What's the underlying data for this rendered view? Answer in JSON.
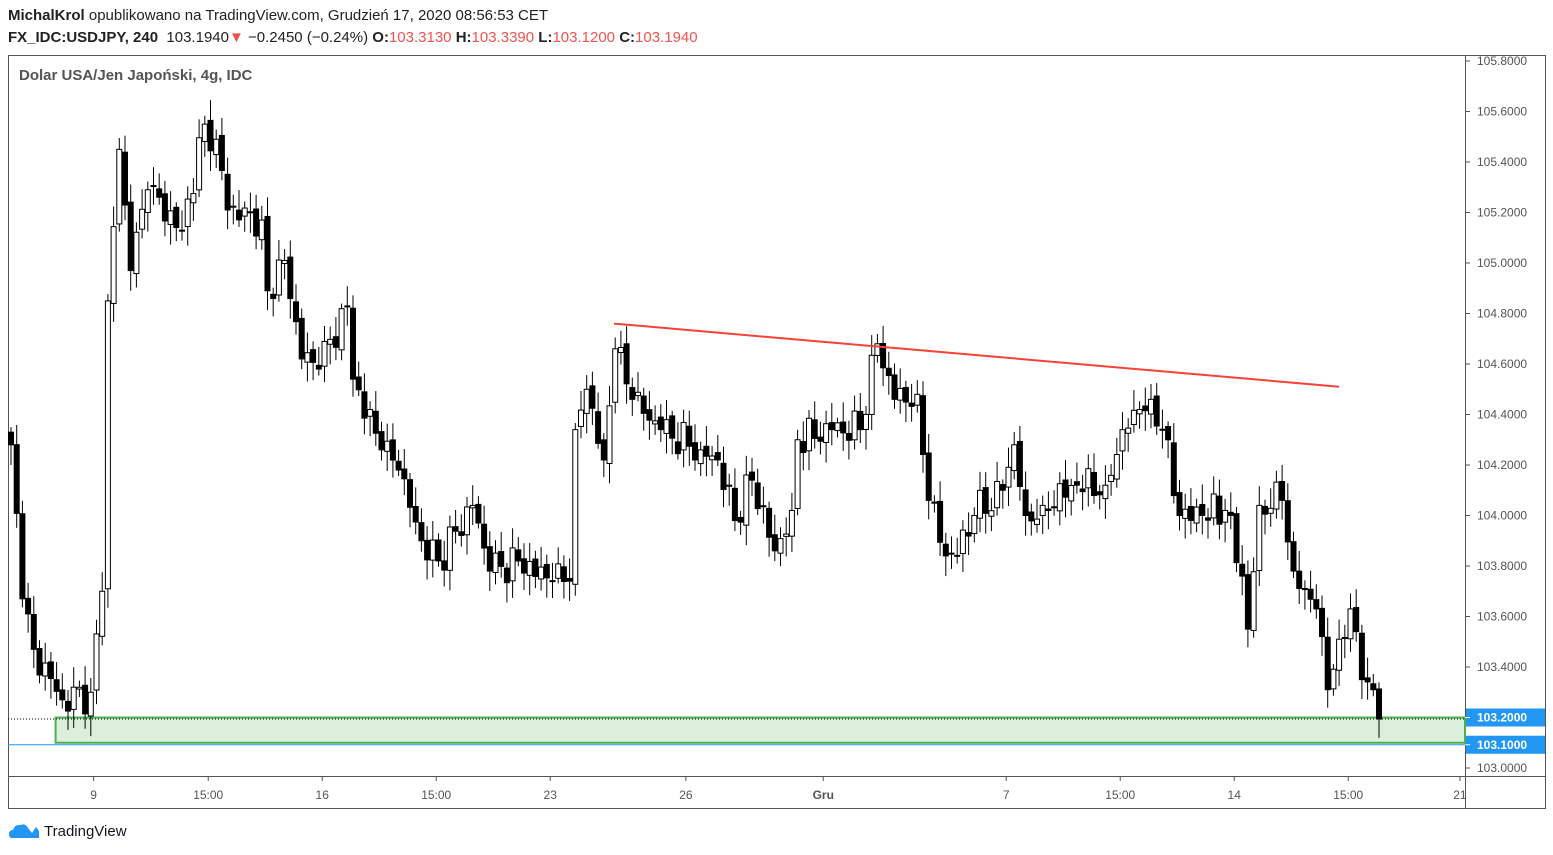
{
  "header": {
    "author": "MichalKrol",
    "published": "opublikowano na TradingView.com, Grudzień 17, 2020 08:56:53 CET",
    "symbol": "FX_IDC:USDJPY, 240",
    "last": "103.1940",
    "change": "−0.2450 (−0.24%)",
    "o_label": "O:",
    "o": "103.3130",
    "h_label": "H:",
    "h": "103.3390",
    "l_label": "L:",
    "l": "103.1200",
    "c_label": "C:",
    "c": "103.1940"
  },
  "legend": "Dolar USA/Jen Japoński, 4g, IDC",
  "brand": "TradingView",
  "colors": {
    "down": "#000000",
    "up": "#ffffff",
    "trendline": "#f44336",
    "zone_fill": "#dcefdc",
    "zone_border": "#4caf50",
    "price_label": "#2196f3",
    "change_down": "#ef5350"
  },
  "chart_data": {
    "type": "candlestick",
    "title": "Dolar USA/Jen Japoński, 4g, IDC",
    "ylim": [
      102.97,
      105.82
    ],
    "y_ticks": [
      "105.8000",
      "105.6000",
      "105.4000",
      "105.2000",
      "105.0000",
      "104.8000",
      "104.6000",
      "104.4000",
      "104.2000",
      "104.0000",
      "103.8000",
      "103.6000",
      "103.4000",
      "103.2000",
      "103.1000",
      "103.0000"
    ],
    "y_tick_values": [
      105.8,
      105.6,
      105.4,
      105.2,
      105.0,
      104.8,
      104.6,
      104.4,
      104.2,
      104.0,
      103.8,
      103.6,
      103.4,
      103.2,
      103.1,
      103.0
    ],
    "highlighted_prices": [
      "103.2000",
      "103.1000"
    ],
    "x_ticks": [
      {
        "label": "9",
        "index": 14.5
      },
      {
        "label": "15:00",
        "index": 34.6
      },
      {
        "label": "16",
        "index": 54.6
      },
      {
        "label": "15:00",
        "index": 74.6
      },
      {
        "label": "23",
        "index": 94.6
      },
      {
        "label": "26",
        "index": 118.4
      },
      {
        "label": "Gru",
        "index": 142.5
      },
      {
        "label": "7",
        "index": 174.6
      },
      {
        "label": "15:00",
        "index": 194.6
      },
      {
        "label": "14",
        "index": 214.6
      },
      {
        "label": "15:00",
        "index": 234.6
      },
      {
        "label": "21",
        "index": 254.2
      }
    ],
    "candle_count": 241,
    "close_waypoints": [
      [
        0,
        104.28
      ],
      [
        2,
        103.67
      ],
      [
        4,
        103.47
      ],
      [
        9,
        103.27
      ],
      [
        14,
        103.3
      ],
      [
        16,
        103.7
      ],
      [
        17,
        104.85
      ],
      [
        19,
        105.45
      ],
      [
        21,
        104.97
      ],
      [
        24,
        105.29
      ],
      [
        30,
        105.13
      ],
      [
        34,
        105.55
      ],
      [
        36,
        105.49
      ],
      [
        38,
        105.21
      ],
      [
        44,
        105.17
      ],
      [
        45,
        104.89
      ],
      [
        48,
        105.01
      ],
      [
        51,
        104.62
      ],
      [
        54,
        104.58
      ],
      [
        59,
        104.83
      ],
      [
        60,
        104.54
      ],
      [
        65,
        104.26
      ],
      [
        68,
        104.18
      ],
      [
        72,
        103.9
      ],
      [
        75,
        103.82
      ],
      [
        81,
        104.04
      ],
      [
        84,
        103.78
      ],
      [
        89,
        103.82
      ],
      [
        95,
        103.74
      ],
      [
        98,
        103.74
      ],
      [
        99,
        104.34
      ],
      [
        101,
        104.5
      ],
      [
        104,
        104.22
      ],
      [
        106,
        104.66
      ],
      [
        109,
        104.46
      ],
      [
        114,
        104.34
      ],
      [
        121,
        104.26
      ],
      [
        124,
        104.22
      ],
      [
        127,
        103.98
      ],
      [
        130,
        104.14
      ],
      [
        134,
        103.86
      ],
      [
        137,
        104.02
      ],
      [
        138,
        104.3
      ],
      [
        144,
        104.34
      ],
      [
        149,
        104.34
      ],
      [
        152,
        104.68
      ],
      [
        155,
        104.46
      ],
      [
        159,
        104.48
      ],
      [
        161,
        104.06
      ],
      [
        164,
        103.84
      ],
      [
        166,
        103.84
      ],
      [
        169,
        104.0
      ],
      [
        174,
        104.1
      ],
      [
        176,
        104.28
      ],
      [
        178,
        104.0
      ],
      [
        181,
        104.04
      ],
      [
        187,
        104.12
      ],
      [
        192,
        104.12
      ],
      [
        195,
        104.34
      ],
      [
        198,
        104.42
      ],
      [
        200,
        104.46
      ],
      [
        202,
        104.34
      ],
      [
        205,
        104.0
      ],
      [
        209,
        104.0
      ],
      [
        213,
        104.02
      ],
      [
        216,
        103.76
      ],
      [
        217,
        103.55
      ],
      [
        219,
        104.04
      ],
      [
        223,
        104.06
      ],
      [
        225,
        103.78
      ],
      [
        229,
        103.63
      ],
      [
        231,
        103.31
      ],
      [
        233,
        103.51
      ],
      [
        235,
        103.63
      ],
      [
        237,
        103.35
      ],
      [
        239,
        103.31
      ],
      [
        240,
        103.194
      ]
    ],
    "last_candle": {
      "open": 103.313,
      "high": 103.339,
      "low": 103.12,
      "close": 103.194
    },
    "trendline": {
      "start": {
        "index": 105.8,
        "price": 104.76
      },
      "end": {
        "index": 233,
        "price": 104.51
      }
    },
    "support_zone": {
      "start_index": 8,
      "top": 103.2,
      "bottom": 103.1
    },
    "horizontal_line": 103.1
  }
}
